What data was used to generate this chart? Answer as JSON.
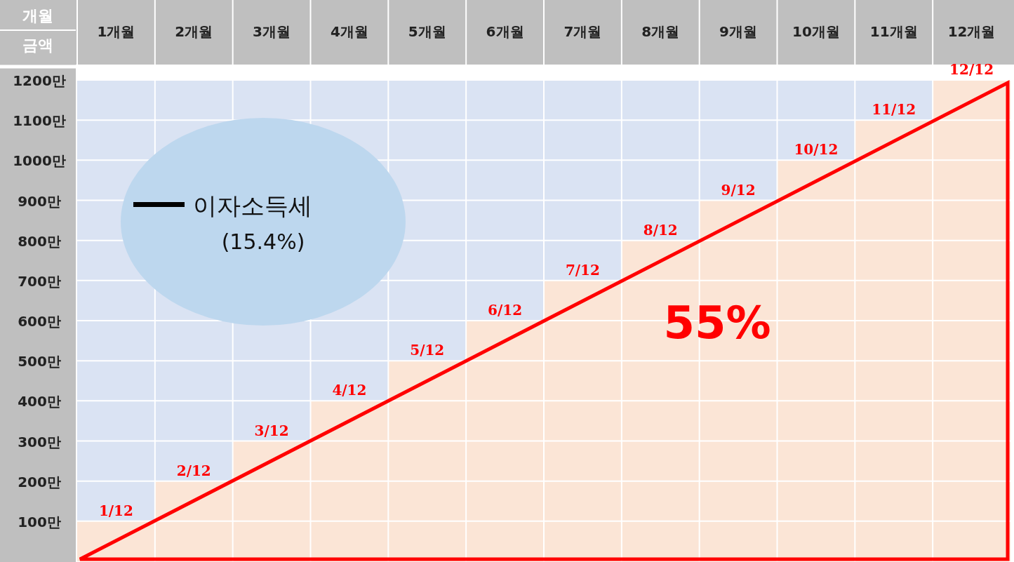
{
  "chart_data": {
    "type": "bar",
    "xlabel": "개월",
    "ylabel": "금액",
    "categories": [
      "1개월",
      "2개월",
      "3개월",
      "4개월",
      "5개월",
      "6개월",
      "7개월",
      "8개월",
      "9개월",
      "10개월",
      "11개월",
      "12개월"
    ],
    "values": [
      100,
      200,
      300,
      400,
      500,
      600,
      700,
      800,
      900,
      1000,
      1100,
      1200
    ],
    "color": "#fbe5d6",
    "ylim": [
      0,
      1200
    ],
    "yticks": [
      {
        "value": 100,
        "label": "100만"
      },
      {
        "value": 200,
        "label": "200만"
      },
      {
        "value": 300,
        "label": "300만"
      },
      {
        "value": 400,
        "label": "400만"
      },
      {
        "value": 500,
        "label": "500만"
      },
      {
        "value": 600,
        "label": "600만"
      },
      {
        "value": 700,
        "label": "700만"
      },
      {
        "value": 800,
        "label": "800만"
      },
      {
        "value": 900,
        "label": "900만"
      },
      {
        "value": 1000,
        "label": "1000만"
      },
      {
        "value": 1100,
        "label": "1100만"
      },
      {
        "value": 1200,
        "label": "1200만"
      }
    ],
    "grid": true,
    "annotations": [
      "이자소득세",
      "(15.4%)",
      "55%",
      {
        "text": "1/12",
        "x": "1개월",
        "y": 100
      },
      {
        "text": "2/12",
        "x": "2개월",
        "y": 200
      },
      {
        "text": "3/12",
        "x": "3개월",
        "y": 300
      },
      {
        "text": "4/12",
        "x": "4개월",
        "y": 400
      },
      {
        "text": "5/12",
        "x": "5개월",
        "y": 500
      },
      {
        "text": "6/12",
        "x": "6개월",
        "y": 600
      },
      {
        "text": "7/12",
        "x": "7개월",
        "y": 700
      },
      {
        "text": "8/12",
        "x": "8개월",
        "y": 800
      },
      {
        "text": "9/12",
        "x": "9개월",
        "y": 900
      },
      {
        "text": "10/12",
        "x": "10개월",
        "y": 1000
      },
      {
        "text": "11/12",
        "x": "11개월",
        "y": 1100
      },
      {
        "text": "12/12",
        "x": "12개월",
        "y": 1200
      }
    ]
  }
}
